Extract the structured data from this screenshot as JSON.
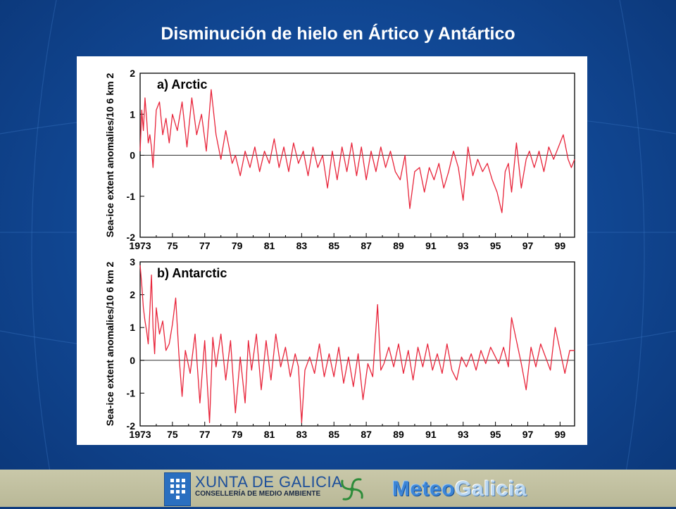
{
  "slide": {
    "title": "Disminución de hielo en Ártico y Antártico"
  },
  "footer": {
    "org_name": "XUNTA DE GALICIA",
    "org_sub": "CONSELLERÍA DE MEDIO AMBIENTE",
    "brand_a": "Meteo",
    "brand_b": "Galicia"
  },
  "colors": {
    "background": "#124a98",
    "series": "#e8243a",
    "footer": "#c2c1a2"
  },
  "chart_data": [
    {
      "type": "line",
      "title": "a) Arctic",
      "ylabel": "Sea-ice extent anomalies/10",
      "ylabel_unit": "6 km 2",
      "xlim": [
        1973,
        1999.9
      ],
      "ylim": [
        -2,
        2
      ],
      "yticks": [
        -2,
        -1,
        0,
        1,
        2
      ],
      "xticks": [
        "1973",
        "75",
        "77",
        "79",
        "81",
        "83",
        "85",
        "87",
        "89",
        "91",
        "93",
        "95",
        "97",
        "99"
      ],
      "grid": false,
      "zero_line": true,
      "series": [
        {
          "color": "#e8243a",
          "x": [
            1973.0,
            1973.1,
            1973.2,
            1973.3,
            1973.4,
            1973.5,
            1973.6,
            1973.7,
            1973.8,
            1973.9,
            1974.0,
            1974.2,
            1974.4,
            1974.6,
            1974.8,
            1975.0,
            1975.3,
            1975.6,
            1975.9,
            1976.2,
            1976.5,
            1976.8,
            1977.1,
            1977.4,
            1977.7,
            1978.0,
            1978.3,
            1978.5,
            1978.7,
            1978.9,
            1979.2,
            1979.5,
            1979.8,
            1980.1,
            1980.4,
            1980.7,
            1981.0,
            1981.3,
            1981.6,
            1981.9,
            1982.2,
            1982.5,
            1982.8,
            1983.1,
            1983.4,
            1983.7,
            1984.0,
            1984.3,
            1984.6,
            1984.9,
            1985.2,
            1985.5,
            1985.8,
            1986.1,
            1986.4,
            1986.7,
            1987.0,
            1987.3,
            1987.6,
            1987.9,
            1988.2,
            1988.5,
            1988.8,
            1989.1,
            1989.4,
            1989.7,
            1990.0,
            1990.3,
            1990.6,
            1990.9,
            1991.2,
            1991.5,
            1991.8,
            1992.1,
            1992.4,
            1992.7,
            1993.0,
            1993.3,
            1993.6,
            1993.9,
            1994.2,
            1994.5,
            1994.8,
            1995.1,
            1995.4,
            1995.6,
            1995.8,
            1996.0,
            1996.3,
            1996.6,
            1996.9,
            1997.1,
            1997.4,
            1997.7,
            1998.0,
            1998.3,
            1998.6,
            1998.9,
            1999.2,
            1999.5,
            1999.7,
            1999.9
          ],
          "values": [
            0.1,
            1.1,
            0.6,
            1.4,
            0.9,
            0.3,
            0.5,
            0.2,
            -0.3,
            0.4,
            1.1,
            1.3,
            0.5,
            0.9,
            0.3,
            1.0,
            0.6,
            1.3,
            0.2,
            1.4,
            0.5,
            1.0,
            0.1,
            1.6,
            0.5,
            -0.1,
            0.6,
            0.2,
            -0.2,
            0.0,
            -0.5,
            0.1,
            -0.3,
            0.2,
            -0.4,
            0.1,
            -0.2,
            0.4,
            -0.3,
            0.2,
            -0.4,
            0.3,
            -0.2,
            0.1,
            -0.5,
            0.2,
            -0.3,
            0.0,
            -0.8,
            0.1,
            -0.6,
            0.2,
            -0.4,
            0.3,
            -0.5,
            0.2,
            -0.6,
            0.1,
            -0.4,
            0.2,
            -0.3,
            0.1,
            -0.4,
            -0.6,
            0.0,
            -1.3,
            -0.4,
            -0.3,
            -0.9,
            -0.3,
            -0.6,
            -0.2,
            -0.8,
            -0.4,
            0.1,
            -0.3,
            -1.1,
            0.2,
            -0.5,
            -0.1,
            -0.4,
            -0.2,
            -0.6,
            -0.9,
            -1.4,
            -0.4,
            -0.2,
            -0.9,
            0.3,
            -0.8,
            -0.1,
            0.1,
            -0.3,
            0.1,
            -0.4,
            0.2,
            -0.1,
            0.2,
            0.5,
            -0.1,
            -0.3,
            -0.1
          ]
        }
      ]
    },
    {
      "type": "line",
      "title": "b) Antarctic",
      "ylabel": "Sea-ice extent anomalies/10",
      "ylabel_unit": "6 km 2",
      "xlim": [
        1973,
        1999.9
      ],
      "ylim": [
        -2,
        3
      ],
      "yticks": [
        -2,
        -1,
        0,
        1,
        2,
        3
      ],
      "xticks": [
        "1973",
        "75",
        "77",
        "79",
        "81",
        "83",
        "85",
        "87",
        "89",
        "91",
        "93",
        "95",
        "97",
        "99"
      ],
      "grid": false,
      "zero_line": true,
      "series": [
        {
          "color": "#e8243a",
          "x": [
            1973.0,
            1973.1,
            1973.2,
            1973.3,
            1973.4,
            1973.5,
            1973.6,
            1973.7,
            1973.8,
            1973.9,
            1974.0,
            1974.2,
            1974.4,
            1974.6,
            1974.8,
            1975.0,
            1975.2,
            1975.4,
            1975.6,
            1975.8,
            1976.1,
            1976.4,
            1976.7,
            1977.0,
            1977.3,
            1977.5,
            1977.7,
            1978.0,
            1978.3,
            1978.6,
            1978.9,
            1979.2,
            1979.5,
            1979.7,
            1979.9,
            1980.2,
            1980.5,
            1980.8,
            1981.1,
            1981.4,
            1981.7,
            1982.0,
            1982.3,
            1982.6,
            1982.8,
            1983.0,
            1983.2,
            1983.5,
            1983.8,
            1984.1,
            1984.4,
            1984.7,
            1985.0,
            1985.3,
            1985.6,
            1985.9,
            1986.2,
            1986.5,
            1986.8,
            1987.1,
            1987.4,
            1987.7,
            1987.9,
            1988.1,
            1988.4,
            1988.7,
            1989.0,
            1989.3,
            1989.6,
            1989.9,
            1990.2,
            1990.5,
            1990.8,
            1991.1,
            1991.4,
            1991.7,
            1992.0,
            1992.3,
            1992.6,
            1992.9,
            1993.2,
            1993.5,
            1993.8,
            1994.1,
            1994.4,
            1994.7,
            1995.0,
            1995.2,
            1995.5,
            1995.8,
            1996.0,
            1996.3,
            1996.6,
            1996.9,
            1997.2,
            1997.5,
            1997.8,
            1998.1,
            1998.4,
            1998.7,
            1999.0,
            1999.3,
            1999.6,
            1999.9
          ],
          "values": [
            2.9,
            2.3,
            1.6,
            1.2,
            0.9,
            0.5,
            1.5,
            2.6,
            1.0,
            0.2,
            1.6,
            0.8,
            1.2,
            0.3,
            0.5,
            1.1,
            1.9,
            0.2,
            -1.1,
            0.3,
            -0.4,
            0.8,
            -1.3,
            0.6,
            -1.9,
            0.7,
            -0.2,
            0.8,
            -0.6,
            0.6,
            -1.6,
            0.1,
            -1.3,
            0.6,
            -0.3,
            0.8,
            -0.9,
            0.6,
            -0.6,
            0.8,
            -0.2,
            0.4,
            -0.5,
            0.2,
            -0.2,
            -1.9,
            -0.3,
            0.1,
            -0.4,
            0.5,
            -0.5,
            0.2,
            -0.5,
            0.4,
            -0.7,
            0.1,
            -0.8,
            0.2,
            -1.2,
            -0.1,
            -0.5,
            1.7,
            -0.3,
            -0.1,
            0.4,
            -0.2,
            0.5,
            -0.4,
            0.3,
            -0.6,
            0.4,
            -0.2,
            0.5,
            -0.3,
            0.2,
            -0.4,
            0.5,
            -0.3,
            -0.6,
            0.1,
            -0.2,
            0.2,
            -0.3,
            0.3,
            -0.1,
            0.4,
            0.1,
            -0.1,
            0.4,
            -0.2,
            1.3,
            0.6,
            -0.1,
            -0.9,
            0.4,
            -0.2,
            0.5,
            0.1,
            -0.3,
            1.0,
            0.3,
            -0.4,
            0.3,
            0.3
          ]
        }
      ]
    }
  ]
}
